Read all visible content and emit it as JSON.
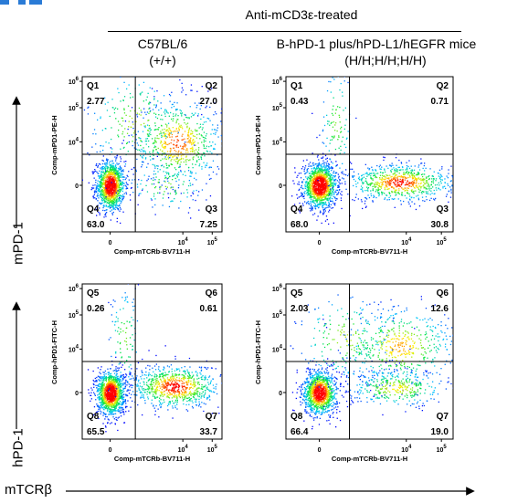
{
  "header": {
    "treatment": "Anti-mCD3ε-treated",
    "group_left_line1": "C57BL/6",
    "group_left_line2": "(+/+)",
    "group_right_line1": "B-hPD-1 plus/hPD-L1/hEGFR mice",
    "group_right_line2": "(H/H;H/H;H/H)"
  },
  "row_labels": {
    "top": "mPD-1",
    "bottom": "hPD-1",
    "x_axis": "mTCRβ"
  },
  "colors": {
    "accent": "#2a7bd6",
    "density_low": "#0000ff",
    "density_high": "#ff0000"
  },
  "chart_data": [
    {
      "type": "scatter",
      "id": "top-left",
      "xlabel": "Comp-mTCRb-BV711-H",
      "ylabel": "Comp-mPD1-PE-H",
      "x_ticks": [
        "0",
        "10^4",
        "10^5"
      ],
      "y_ticks": [
        "0",
        "10^4",
        "10^5",
        "10^6"
      ],
      "gate_x": 0.38,
      "gate_y": 0.5,
      "quadrants": [
        {
          "name": "Q1",
          "value": "2.77"
        },
        {
          "name": "Q2",
          "value": "27.0"
        },
        {
          "name": "Q3",
          "value": "7.25"
        },
        {
          "name": "Q4",
          "value": "63.0"
        }
      ],
      "populations": [
        {
          "cx": 0.2,
          "cy": 0.3,
          "sx": 0.05,
          "sy": 0.08,
          "frac": 0.55
        },
        {
          "cx": 0.68,
          "cy": 0.58,
          "sx": 0.16,
          "sy": 0.14,
          "frac": 0.3
        },
        {
          "cx": 0.38,
          "cy": 0.7,
          "sx": 0.18,
          "sy": 0.18,
          "frac": 0.1
        },
        {
          "cx": 0.6,
          "cy": 0.3,
          "sx": 0.15,
          "sy": 0.08,
          "frac": 0.05
        }
      ]
    },
    {
      "type": "scatter",
      "id": "top-right",
      "xlabel": "Comp-mTCRb-BV711-H",
      "ylabel": "Comp-mPD1-PE-H",
      "x_ticks": [
        "0",
        "10^4",
        "10^5"
      ],
      "y_ticks": [
        "0",
        "10^4",
        "10^5",
        "10^6"
      ],
      "gate_x": 0.38,
      "gate_y": 0.5,
      "quadrants": [
        {
          "name": "Q1",
          "value": "0.43"
        },
        {
          "name": "Q2",
          "value": "0.71"
        },
        {
          "name": "Q3",
          "value": "30.8"
        },
        {
          "name": "Q4",
          "value": "68.0"
        }
      ],
      "populations": [
        {
          "cx": 0.2,
          "cy": 0.3,
          "sx": 0.05,
          "sy": 0.07,
          "frac": 0.6
        },
        {
          "cx": 0.68,
          "cy": 0.32,
          "sx": 0.16,
          "sy": 0.06,
          "frac": 0.35
        },
        {
          "cx": 0.3,
          "cy": 0.7,
          "sx": 0.05,
          "sy": 0.2,
          "frac": 0.05
        }
      ]
    },
    {
      "type": "scatter",
      "id": "bottom-left",
      "xlabel": "Comp-mTCRb-BV711-H",
      "ylabel": "Comp-hPD1-FITC-H",
      "x_ticks": [
        "0",
        "10^4",
        "10^5"
      ],
      "y_ticks": [
        "0",
        "10^4",
        "10^5",
        "10^6"
      ],
      "gate_x": 0.38,
      "gate_y": 0.5,
      "quadrants": [
        {
          "name": "Q5",
          "value": "0.26"
        },
        {
          "name": "Q6",
          "value": "0.61"
        },
        {
          "name": "Q7",
          "value": "33.7"
        },
        {
          "name": "Q8",
          "value": "65.5"
        }
      ],
      "populations": [
        {
          "cx": 0.2,
          "cy": 0.3,
          "sx": 0.05,
          "sy": 0.07,
          "frac": 0.58
        },
        {
          "cx": 0.66,
          "cy": 0.34,
          "sx": 0.16,
          "sy": 0.07,
          "frac": 0.37
        },
        {
          "cx": 0.3,
          "cy": 0.65,
          "sx": 0.06,
          "sy": 0.18,
          "frac": 0.05
        }
      ]
    },
    {
      "type": "scatter",
      "id": "bottom-right",
      "xlabel": "Comp-mTCRb-BV711-H",
      "ylabel": "Comp-hPD1-FITC-H",
      "x_ticks": [
        "0",
        "10^4",
        "10^5"
      ],
      "y_ticks": [
        "0",
        "10^4",
        "10^5",
        "10^6"
      ],
      "gate_x": 0.38,
      "gate_y": 0.5,
      "quadrants": [
        {
          "name": "Q5",
          "value": "2.03"
        },
        {
          "name": "Q6",
          "value": "12.6"
        },
        {
          "name": "Q7",
          "value": "19.0"
        },
        {
          "name": "Q8",
          "value": "66.4"
        }
      ],
      "populations": [
        {
          "cx": 0.2,
          "cy": 0.3,
          "sx": 0.05,
          "sy": 0.07,
          "frac": 0.52
        },
        {
          "cx": 0.68,
          "cy": 0.6,
          "sx": 0.17,
          "sy": 0.13,
          "frac": 0.22
        },
        {
          "cx": 0.66,
          "cy": 0.33,
          "sx": 0.15,
          "sy": 0.06,
          "frac": 0.16
        },
        {
          "cx": 0.35,
          "cy": 0.65,
          "sx": 0.15,
          "sy": 0.15,
          "frac": 0.1
        }
      ]
    }
  ]
}
